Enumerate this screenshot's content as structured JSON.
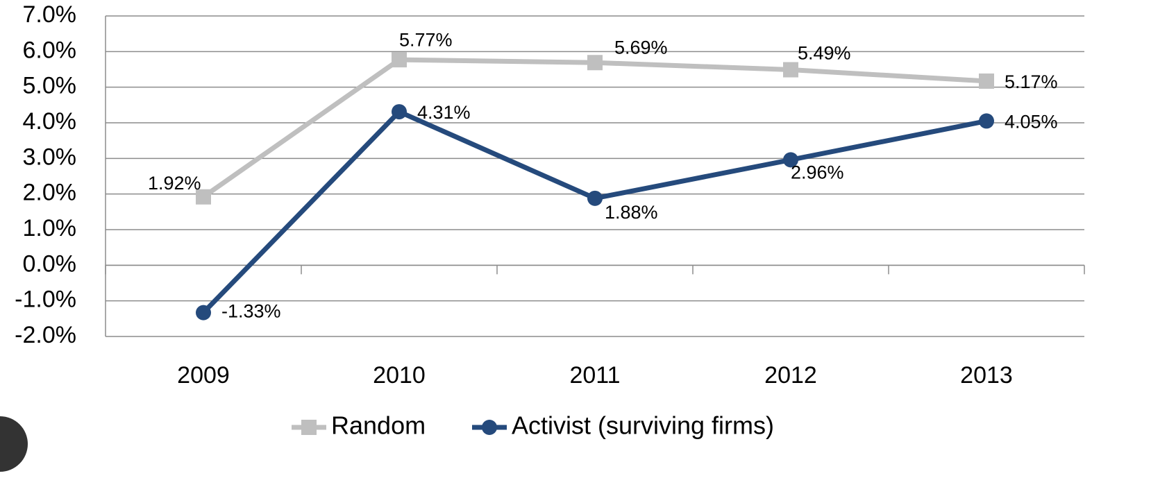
{
  "chart_data": {
    "type": "line",
    "categories": [
      "2009",
      "2010",
      "2011",
      "2012",
      "2013"
    ],
    "series": [
      {
        "name": "Random",
        "color": "#bfbfbf",
        "marker": "square",
        "values": [
          1.92,
          5.77,
          5.69,
          5.49,
          5.17
        ],
        "value_labels": [
          "1.92%",
          "5.77%",
          "5.69%",
          "5.49%",
          "5.17%"
        ]
      },
      {
        "name": "Activist (surviving firms)",
        "color": "#254a7c",
        "marker": "circle",
        "values": [
          -1.33,
          4.31,
          1.88,
          2.96,
          4.05
        ],
        "value_labels": [
          "-1.33%",
          "4.31%",
          "1.88%",
          "2.96%",
          "4.05%"
        ]
      }
    ],
    "ylim": [
      -2,
      7
    ],
    "yticks": [
      {
        "value": -2,
        "label": "-2.0%"
      },
      {
        "value": -1,
        "label": "-1.0%"
      },
      {
        "value": 0,
        "label": "0.0%"
      },
      {
        "value": 1,
        "label": "1.0%"
      },
      {
        "value": 2,
        "label": "2.0%"
      },
      {
        "value": 3,
        "label": "3.0%"
      },
      {
        "value": 4,
        "label": "4.0%"
      },
      {
        "value": 5,
        "label": "5.0%"
      },
      {
        "value": 6,
        "label": "6.0%"
      },
      {
        "value": 7,
        "label": "7.0%"
      }
    ],
    "grid": true,
    "legend": "bottom"
  }
}
